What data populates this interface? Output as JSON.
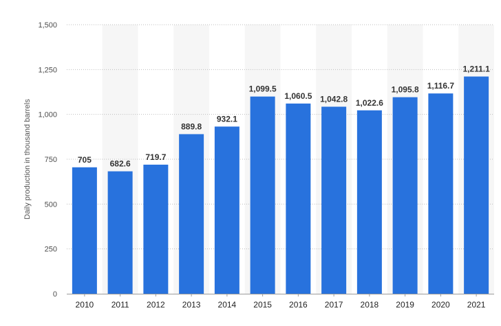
{
  "colors": {
    "bar": "#2872dd",
    "band": "#f6f6f6",
    "grid": "#bdbdbd",
    "axis": "#9a9a9a"
  },
  "chart_data": {
    "type": "bar",
    "title": "",
    "xlabel": "",
    "ylabel": "Daily production in thousand barrels",
    "ylim": [
      0,
      1500
    ],
    "y_ticks": [
      "0",
      "250",
      "500",
      "750",
      "1,000",
      "1,250",
      "1,500"
    ],
    "grid": true,
    "legend": "none",
    "categories": [
      "2010",
      "2011",
      "2012",
      "2013",
      "2014",
      "2015",
      "2016",
      "2017",
      "2018",
      "2019",
      "2020",
      "2021"
    ],
    "values": [
      705,
      682.6,
      719.7,
      889.8,
      932.1,
      1099.5,
      1060.5,
      1042.8,
      1022.6,
      1095.8,
      1116.7,
      1211.1
    ],
    "value_labels": [
      "705",
      "682.6",
      "719.7",
      "889.8",
      "932.1",
      "1,099.5",
      "1,060.5",
      "1,042.8",
      "1,022.6",
      "1,095.8",
      "1,116.7",
      "1,211.1"
    ]
  }
}
